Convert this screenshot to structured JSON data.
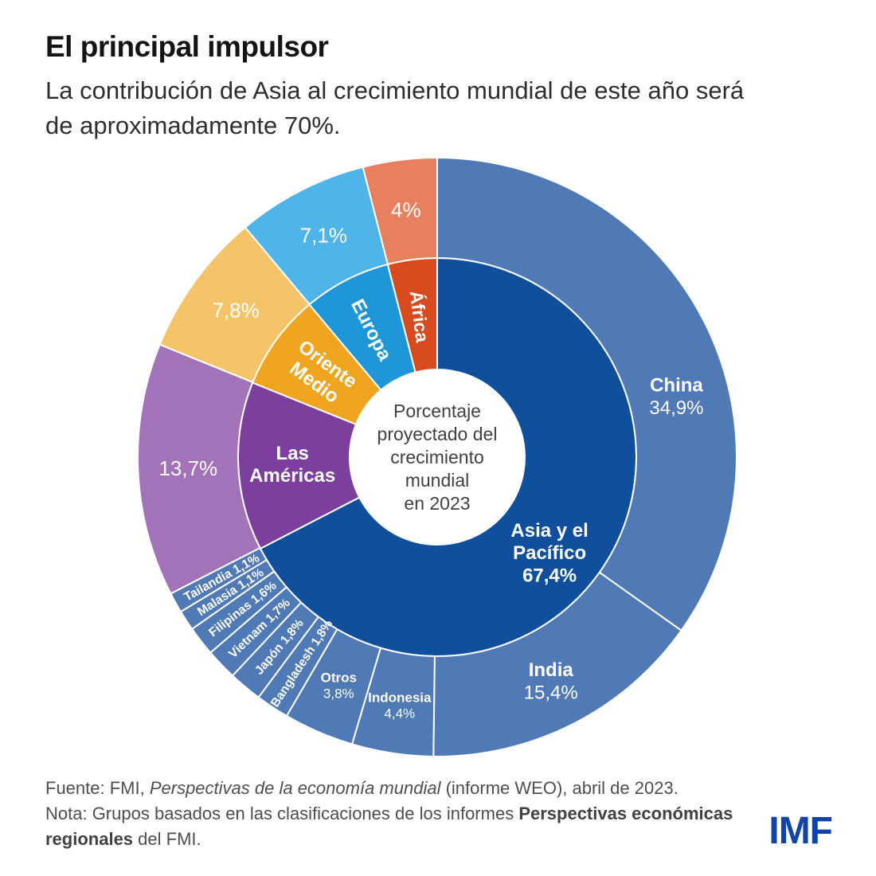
{
  "page": {
    "background": "#ffffff"
  },
  "header": {
    "title": "El principal impulsor",
    "subtitle": "La contribución de Asia al crecimiento mundial de este año será de aproximadamente 70%."
  },
  "chart_data": {
    "type": "pie",
    "variant": "two-ring-donut",
    "center_label_lines": [
      "Porcentaje",
      "proyectado del",
      "crecimiento",
      "mundial",
      "en 2023"
    ],
    "center_text_color": "#414042",
    "label_color": "#ffffff",
    "separator_color": "#ffffff",
    "inner_ring": [
      {
        "label": "Asia y el Pacífico",
        "value": 67.4,
        "display": "67,4%",
        "color": "#104f9b",
        "label_lines": [
          "Asia y el",
          "Pacífico",
          "67,4%"
        ],
        "label_type": "horizontal",
        "bold": true,
        "font_size": 24,
        "label_r": 185,
        "angle_offset": 9
      },
      {
        "label": "Las Américas",
        "value": 13.7,
        "color": "#7d3f9e",
        "label_lines": [
          "Las",
          "Américas"
        ],
        "label_type": "horizontal",
        "bold": true,
        "font_size": 24,
        "label_r": 182,
        "angle_offset": 0
      },
      {
        "label": "Oriente Medio",
        "value": 7.8,
        "color": "#efa51f",
        "label_lines": [
          "Oriente",
          "Medio"
        ],
        "label_type": "radial",
        "bold": true,
        "font_size": 24,
        "label_r": 180,
        "angle_offset": 0
      },
      {
        "label": "Europa",
        "value": 7.1,
        "color": "#1e96d8",
        "label_lines": [
          "Europa"
        ],
        "label_type": "radial",
        "bold": true,
        "font_size": 24,
        "label_r": 180,
        "angle_offset": 0
      },
      {
        "label": "África",
        "value": 4.0,
        "color": "#d84b1e",
        "label_lines": [
          "África"
        ],
        "label_type": "radial",
        "bold": true,
        "font_size": 23,
        "label_r": 178,
        "angle_offset": 0
      }
    ],
    "outer_ring": [
      {
        "label": "China",
        "value": 34.9,
        "display": "34,9%",
        "color": "#4f7ab5",
        "label_lines": [
          "China",
          "34,9%"
        ],
        "label_type": "horizontal",
        "first_line_bold": true,
        "font_size": 24,
        "label_r": 310,
        "angle_offset": 13
      },
      {
        "label": "India",
        "value": 15.4,
        "display": "15,4%",
        "color": "#4f7ab5",
        "label_lines": [
          "India",
          "15,4%"
        ],
        "label_type": "horizontal",
        "first_line_bold": true,
        "font_size": 24,
        "label_r": 315,
        "angle_offset": 0
      },
      {
        "label": "Indonesia",
        "value": 4.4,
        "display": "4,4%",
        "color": "#4f7ab5",
        "label_lines": [
          "Indonesia",
          "4,4%"
        ],
        "label_type": "horizontal",
        "first_line_bold": true,
        "font_size": 17,
        "label_r": 315,
        "angle_offset": 0
      },
      {
        "label": "Otros",
        "value": 3.8,
        "display": "3,8%",
        "color": "#4f7ab5",
        "label_lines": [
          "Otros",
          "3,8%"
        ],
        "label_type": "horizontal",
        "first_line_bold": true,
        "font_size": 17,
        "label_r": 312,
        "angle_offset": 0
      },
      {
        "label": "Bangladesh",
        "value": 1.8,
        "display": "1,8%",
        "color": "#4f7ab5",
        "label_lines": [
          "Bangladesh 1,8%"
        ],
        "label_type": "radial",
        "bold": true,
        "font_size": 15.5,
        "label_r": 310,
        "angle_offset": 0
      },
      {
        "label": "Japón",
        "value": 1.8,
        "display": "1,8%",
        "color": "#4f7ab5",
        "label_lines": [
          "Japón 1,8%"
        ],
        "label_type": "radial",
        "bold": true,
        "font_size": 15.5,
        "label_r": 310,
        "angle_offset": 0
      },
      {
        "label": "Vietnam",
        "value": 1.7,
        "display": "1,7%",
        "color": "#4f7ab5",
        "label_lines": [
          "Vietnam 1,7%"
        ],
        "label_type": "radial",
        "bold": true,
        "font_size": 15.5,
        "label_r": 310,
        "angle_offset": 0
      },
      {
        "label": "Filipinas",
        "value": 1.6,
        "display": "1,6%",
        "color": "#4f7ab5",
        "label_lines": [
          "Filipinas 1,6%"
        ],
        "label_type": "radial",
        "bold": true,
        "font_size": 15.5,
        "label_r": 310,
        "angle_offset": 0
      },
      {
        "label": "Malasia",
        "value": 1.1,
        "display": "1,1%",
        "color": "#4f7ab5",
        "label_lines": [
          "Malasia 1,1%"
        ],
        "label_type": "radial",
        "bold": true,
        "font_size": 15.5,
        "label_r": 310,
        "angle_offset": 0
      },
      {
        "label": "Tailandia",
        "value": 1.1,
        "display": "1,1%",
        "color": "#4f7ab5",
        "label_lines": [
          "Tailandia 1,1%"
        ],
        "label_type": "radial",
        "bold": true,
        "font_size": 15.5,
        "label_r": 310,
        "angle_offset": 0
      },
      {
        "label": "Las Américas",
        "value": 13.7,
        "display": "13,7%",
        "color": "#a273b8",
        "label_lines": [
          "13,7%"
        ],
        "label_type": "horizontal",
        "font_size": 26,
        "label_r": 313,
        "angle_offset": 0
      },
      {
        "label": "Oriente Medio",
        "value": 7.8,
        "display": "7,8%",
        "color": "#f5c468",
        "label_lines": [
          "7,8%"
        ],
        "label_type": "horizontal",
        "font_size": 26,
        "label_r": 313,
        "angle_offset": 0
      },
      {
        "label": "Europa",
        "value": 7.1,
        "display": "7,1%",
        "color": "#4fb4e8",
        "label_lines": [
          "7,1%"
        ],
        "label_type": "horizontal",
        "font_size": 26,
        "label_r": 313,
        "angle_offset": 0
      },
      {
        "label": "África",
        "value": 4.0,
        "display": "4%",
        "color": "#e8805f",
        "label_lines": [
          "4%"
        ],
        "label_type": "horizontal",
        "font_size": 26,
        "label_r": 313,
        "angle_offset": 0
      }
    ]
  },
  "footer": {
    "fuente_prefix": "Fuente: FMI, ",
    "fuente_italic": "Perspectivas de la economía mundial",
    "fuente_suffix": " (informe WEO), abril de 2023.",
    "nota_prefix": "Nota: Grupos basados en las clasificaciones de los informes ",
    "nota_bold_line1": "Perspectivas económicas",
    "nota_bold_line2": "regionales",
    "nota_suffix": " del FMI.",
    "logo": "IMF"
  }
}
